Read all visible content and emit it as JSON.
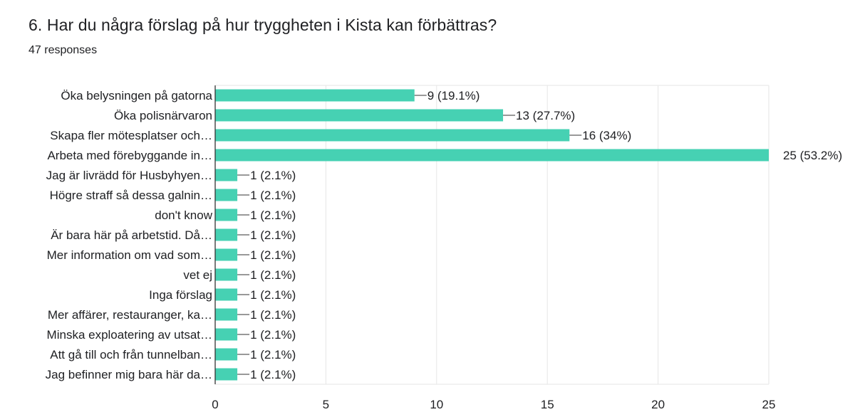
{
  "card": {
    "title": "6. Har du några förslag på hur tryggheten i Kista kan förbättras?",
    "responses": "47 responses"
  },
  "colors": {
    "bar": "#46d1b3",
    "grid": "#e6e6e6",
    "axis": "#333333"
  },
  "chart_data": {
    "type": "bar",
    "orientation": "horizontal",
    "categories": [
      "Öka belysningen på gatorna",
      "Öka polisnärvaron",
      "Skapa fler mötesplatser och…",
      "Arbeta med förebyggande in…",
      "Jag är livrädd för Husbyhyen…",
      "Högre straff så dessa galnin…",
      "don't know",
      "Är bara här på arbetstid. Då…",
      "Mer information om vad som…",
      "vet ej",
      "Inga förslag",
      "Mer affärer, restauranger, ka…",
      "Minska exploatering av utsat…",
      "Att gå till och från tunnelban…",
      "Jag befinner mig bara här da…"
    ],
    "values": [
      9,
      13,
      16,
      25,
      1,
      1,
      1,
      1,
      1,
      1,
      1,
      1,
      1,
      1,
      1
    ],
    "value_labels": [
      "9 (19.1%)",
      "13 (27.7%)",
      "16 (34%)",
      "25 (53.2%)",
      "1 (2.1%)",
      "1 (2.1%)",
      "1 (2.1%)",
      "1 (2.1%)",
      "1 (2.1%)",
      "1 (2.1%)",
      "1 (2.1%)",
      "1 (2.1%)",
      "1 (2.1%)",
      "1 (2.1%)",
      "1 (2.1%)"
    ],
    "xlim": [
      0,
      25
    ],
    "xticks": [
      0,
      5,
      10,
      15,
      20,
      25
    ],
    "grid": true
  }
}
